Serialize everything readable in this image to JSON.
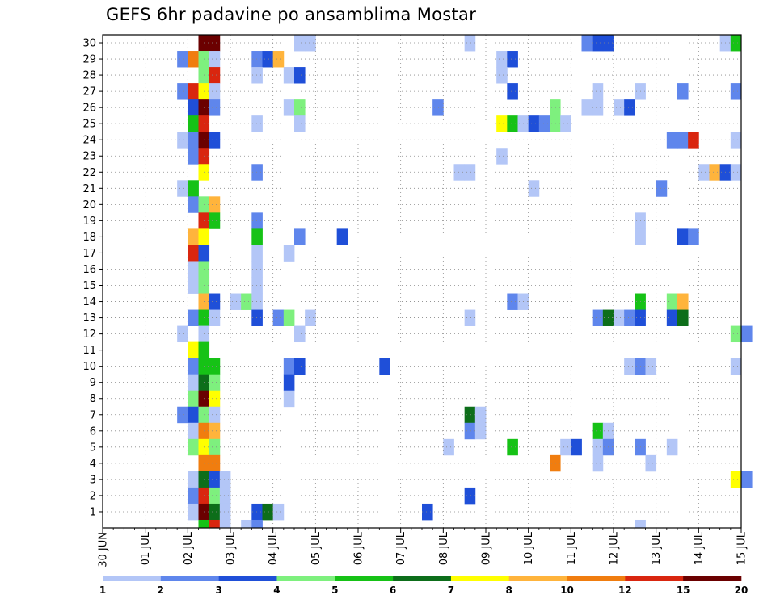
{
  "title": "GEFS 6hr padavine po ansamblima Mostar",
  "chart_data": {
    "type": "heatmap",
    "title": "GEFS 6hr padavine po ansamblima Mostar",
    "y_ticks": [
      1,
      2,
      3,
      4,
      5,
      6,
      7,
      8,
      9,
      10,
      11,
      12,
      13,
      14,
      15,
      16,
      17,
      18,
      19,
      20,
      21,
      22,
      23,
      24,
      25,
      26,
      27,
      28,
      29,
      30
    ],
    "ylim": [
      0,
      30
    ],
    "x_ticks": [
      "30 JUN",
      "01 JUL",
      "02 JUL",
      "03 JUL",
      "04 JUL",
      "05 JUL",
      "06 JUL",
      "07 JUL",
      "08 JUL",
      "09 JUL",
      "10 JUL",
      "11 JUL",
      "12 JUL",
      "13 JUL",
      "14 JUL",
      "15 JUL"
    ],
    "x_step": "6hr",
    "grid": true,
    "legend": {
      "placement": "bottom",
      "colors": [
        "#b3c6f7",
        "#5f86ec",
        "#1f4fd8",
        "#7ef07e",
        "#16c216",
        "#0d6e1a",
        "#ffff00",
        "#ffb43c",
        "#f07d0f",
        "#d9260f",
        "#6b0000"
      ],
      "labels": [
        "1",
        "2",
        "3",
        "4",
        "5",
        "6",
        "7",
        "8",
        "10",
        "12",
        "15",
        "20"
      ]
    },
    "cells": [
      [
        9,
        30,
        10
      ],
      [
        10,
        30,
        10
      ],
      [
        18,
        30,
        0
      ],
      [
        19,
        30,
        0
      ],
      [
        34,
        30,
        0
      ],
      [
        45,
        30,
        1
      ],
      [
        46,
        30,
        2
      ],
      [
        47,
        30,
        2
      ],
      [
        58,
        30,
        0
      ],
      [
        59,
        30,
        4
      ],
      [
        7,
        29,
        1
      ],
      [
        8,
        29,
        8
      ],
      [
        9,
        29,
        3
      ],
      [
        10,
        29,
        0
      ],
      [
        14,
        29,
        1
      ],
      [
        15,
        29,
        2
      ],
      [
        16,
        29,
        7
      ],
      [
        37,
        29,
        0
      ],
      [
        38,
        29,
        2
      ],
      [
        9,
        28,
        3
      ],
      [
        10,
        28,
        9
      ],
      [
        14,
        28,
        0
      ],
      [
        17,
        28,
        0
      ],
      [
        18,
        28,
        2
      ],
      [
        37,
        28,
        0
      ],
      [
        7,
        27,
        1
      ],
      [
        8,
        27,
        9
      ],
      [
        9,
        27,
        6
      ],
      [
        10,
        27,
        0
      ],
      [
        38,
        27,
        2
      ],
      [
        46,
        27,
        0
      ],
      [
        50,
        27,
        0
      ],
      [
        54,
        27,
        1
      ],
      [
        59,
        27,
        1
      ],
      [
        8,
        26,
        2
      ],
      [
        9,
        26,
        10
      ],
      [
        10,
        26,
        1
      ],
      [
        17,
        26,
        0
      ],
      [
        18,
        26,
        3
      ],
      [
        31,
        26,
        1
      ],
      [
        42,
        26,
        3
      ],
      [
        45,
        26,
        0
      ],
      [
        46,
        26,
        0
      ],
      [
        48,
        26,
        0
      ],
      [
        49,
        26,
        2
      ],
      [
        8,
        25,
        4
      ],
      [
        9,
        25,
        9
      ],
      [
        14,
        25,
        0
      ],
      [
        18,
        25,
        0
      ],
      [
        37,
        25,
        6
      ],
      [
        38,
        25,
        4
      ],
      [
        39,
        25,
        0
      ],
      [
        40,
        25,
        2
      ],
      [
        41,
        25,
        1
      ],
      [
        42,
        25,
        3
      ],
      [
        43,
        25,
        0
      ],
      [
        7,
        24,
        0
      ],
      [
        8,
        24,
        1
      ],
      [
        9,
        24,
        10
      ],
      [
        10,
        24,
        2
      ],
      [
        53,
        24,
        1
      ],
      [
        54,
        24,
        1
      ],
      [
        55,
        24,
        9
      ],
      [
        59,
        24,
        0
      ],
      [
        8,
        23,
        1
      ],
      [
        9,
        23,
        9
      ],
      [
        37,
        23,
        0
      ],
      [
        9,
        22,
        6
      ],
      [
        14,
        22,
        1
      ],
      [
        33,
        22,
        0
      ],
      [
        34,
        22,
        0
      ],
      [
        56,
        22,
        0
      ],
      [
        57,
        22,
        7
      ],
      [
        58,
        22,
        2
      ],
      [
        59,
        22,
        0
      ],
      [
        7,
        21,
        0
      ],
      [
        8,
        21,
        4
      ],
      [
        40,
        21,
        0
      ],
      [
        52,
        21,
        1
      ],
      [
        8,
        20,
        1
      ],
      [
        9,
        20,
        3
      ],
      [
        10,
        20,
        7
      ],
      [
        9,
        19,
        9
      ],
      [
        10,
        19,
        4
      ],
      [
        14,
        19,
        1
      ],
      [
        50,
        19,
        0
      ],
      [
        8,
        18,
        7
      ],
      [
        9,
        18,
        6
      ],
      [
        14,
        18,
        4
      ],
      [
        18,
        18,
        1
      ],
      [
        22,
        18,
        2
      ],
      [
        50,
        18,
        0
      ],
      [
        54,
        18,
        2
      ],
      [
        55,
        18,
        1
      ],
      [
        8,
        17,
        9
      ],
      [
        9,
        17,
        2
      ],
      [
        14,
        17,
        0
      ],
      [
        17,
        17,
        0
      ],
      [
        8,
        16,
        0
      ],
      [
        9,
        16,
        3
      ],
      [
        14,
        16,
        0
      ],
      [
        8,
        15,
        0
      ],
      [
        9,
        15,
        3
      ],
      [
        14,
        15,
        0
      ],
      [
        9,
        14,
        7
      ],
      [
        10,
        14,
        2
      ],
      [
        12,
        14,
        0
      ],
      [
        13,
        14,
        3
      ],
      [
        14,
        14,
        0
      ],
      [
        38,
        14,
        1
      ],
      [
        39,
        14,
        0
      ],
      [
        50,
        14,
        4
      ],
      [
        53,
        14,
        3
      ],
      [
        54,
        14,
        7
      ],
      [
        8,
        13,
        1
      ],
      [
        9,
        13,
        4
      ],
      [
        10,
        13,
        0
      ],
      [
        14,
        13,
        2
      ],
      [
        16,
        13,
        1
      ],
      [
        17,
        13,
        3
      ],
      [
        19,
        13,
        0
      ],
      [
        34,
        13,
        0
      ],
      [
        46,
        13,
        1
      ],
      [
        47,
        13,
        5
      ],
      [
        48,
        13,
        0
      ],
      [
        49,
        13,
        1
      ],
      [
        50,
        13,
        2
      ],
      [
        53,
        13,
        2
      ],
      [
        54,
        13,
        5
      ],
      [
        7,
        12,
        0
      ],
      [
        9,
        12,
        0
      ],
      [
        18,
        12,
        0
      ],
      [
        59,
        12,
        3
      ],
      [
        60,
        12,
        1
      ],
      [
        8,
        11,
        6
      ],
      [
        9,
        11,
        4
      ],
      [
        8,
        10,
        1
      ],
      [
        9,
        10,
        4
      ],
      [
        10,
        10,
        4
      ],
      [
        17,
        10,
        1
      ],
      [
        18,
        10,
        2
      ],
      [
        26,
        10,
        2
      ],
      [
        49,
        10,
        0
      ],
      [
        50,
        10,
        1
      ],
      [
        51,
        10,
        0
      ],
      [
        59,
        10,
        0
      ],
      [
        8,
        9,
        0
      ],
      [
        9,
        9,
        5
      ],
      [
        10,
        9,
        3
      ],
      [
        17,
        9,
        2
      ],
      [
        8,
        8,
        3
      ],
      [
        9,
        8,
        10
      ],
      [
        10,
        8,
        6
      ],
      [
        17,
        8,
        0
      ],
      [
        7,
        7,
        1
      ],
      [
        8,
        7,
        2
      ],
      [
        9,
        7,
        3
      ],
      [
        10,
        7,
        0
      ],
      [
        34,
        7,
        5
      ],
      [
        35,
        7,
        0
      ],
      [
        8,
        6,
        0
      ],
      [
        9,
        6,
        8
      ],
      [
        10,
        6,
        7
      ],
      [
        34,
        6,
        1
      ],
      [
        35,
        6,
        0
      ],
      [
        46,
        6,
        4
      ],
      [
        47,
        6,
        0
      ],
      [
        8,
        5,
        3
      ],
      [
        9,
        5,
        6
      ],
      [
        10,
        5,
        3
      ],
      [
        32,
        5,
        0
      ],
      [
        38,
        5,
        4
      ],
      [
        43,
        5,
        0
      ],
      [
        44,
        5,
        2
      ],
      [
        46,
        5,
        0
      ],
      [
        47,
        5,
        1
      ],
      [
        50,
        5,
        1
      ],
      [
        53,
        5,
        0
      ],
      [
        9,
        4,
        8
      ],
      [
        10,
        4,
        8
      ],
      [
        42,
        4,
        8
      ],
      [
        46,
        4,
        0
      ],
      [
        51,
        4,
        0
      ],
      [
        8,
        3,
        0
      ],
      [
        9,
        3,
        5
      ],
      [
        10,
        3,
        2
      ],
      [
        11,
        3,
        0
      ],
      [
        59,
        3,
        6
      ],
      [
        60,
        3,
        1
      ],
      [
        8,
        2,
        1
      ],
      [
        9,
        2,
        9
      ],
      [
        10,
        2,
        3
      ],
      [
        11,
        2,
        0
      ],
      [
        34,
        2,
        2
      ],
      [
        8,
        1,
        0
      ],
      [
        9,
        1,
        10
      ],
      [
        10,
        1,
        5
      ],
      [
        11,
        1,
        0
      ],
      [
        14,
        1,
        2
      ],
      [
        15,
        1,
        5
      ],
      [
        16,
        1,
        0
      ],
      [
        30,
        1,
        2
      ],
      [
        9,
        0,
        4
      ],
      [
        10,
        0,
        9
      ],
      [
        11,
        0,
        0
      ],
      [
        13,
        0,
        0
      ],
      [
        14,
        0,
        1
      ],
      [
        50,
        0,
        0
      ]
    ]
  }
}
